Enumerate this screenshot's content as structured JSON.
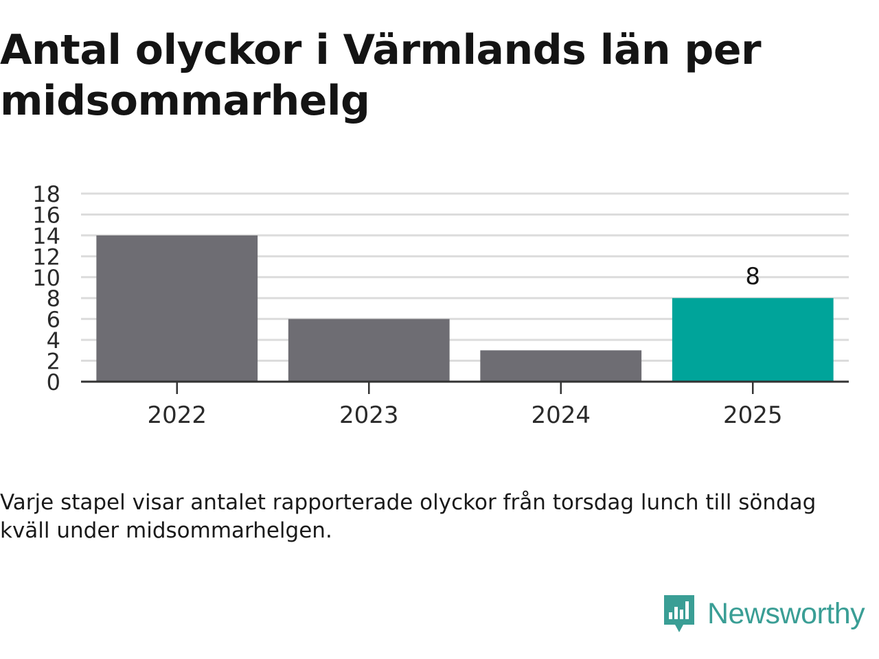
{
  "title": "Antal olyckor i Värmlands län per midsommarhelg",
  "caption": "Varje stapel visar antalet rapporterade olyckor från torsdag lunch till söndag kväll under midsommarhelgen.",
  "logo": {
    "name": "Newsworthy",
    "icon": "newsworthy-chat-bars-icon"
  },
  "colors": {
    "bar": "#6e6d73",
    "highlight": "#00a49a",
    "grid": "#dcdcdc",
    "axis": "#333333",
    "brand": "#3a9e95"
  },
  "chart_data": {
    "type": "bar",
    "categories": [
      "2022",
      "2023",
      "2024",
      "2025"
    ],
    "values": [
      14,
      6,
      3,
      8
    ],
    "highlight_index": 3,
    "data_labels": [
      "",
      "",
      "",
      "8"
    ],
    "title": "Antal olyckor i Värmlands län per midsommarhelg",
    "xlabel": "",
    "ylabel": "",
    "ylim": [
      0,
      18
    ],
    "yticks": [
      0,
      2,
      4,
      6,
      8,
      10,
      12,
      14,
      16,
      18
    ],
    "grid": true,
    "legend": "none"
  }
}
